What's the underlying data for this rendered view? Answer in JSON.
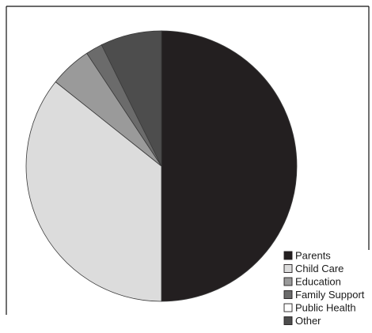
{
  "chart_data": {
    "type": "pie",
    "title": "",
    "legend_position": "bottom-right",
    "series": [
      {
        "name": "",
        "slices": [
          {
            "label": "Parents",
            "value": 50.0,
            "color": "#231f20"
          },
          {
            "label": "Child Care",
            "value": 35.7,
            "color": "#dcdcdc"
          },
          {
            "label": "Education",
            "value": 5.0,
            "color": "#9a9a9a"
          },
          {
            "label": "Family Support",
            "value": 2.0,
            "color": "#6b6b6b"
          },
          {
            "label": "Public Health",
            "value": 0.0,
            "color": "#ffffff"
          },
          {
            "label": "Other",
            "value": 7.3,
            "color": "#4d4d4d"
          }
        ]
      }
    ]
  }
}
